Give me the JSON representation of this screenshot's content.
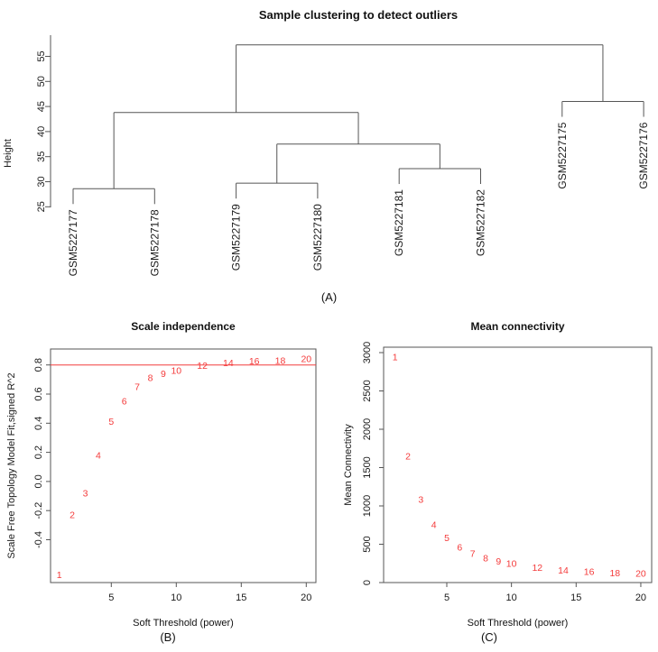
{
  "figure": {
    "background": "#ffffff",
    "accent_red": "#f43b3b",
    "line_color": "#555555",
    "text_color": "#1a1a1a"
  },
  "panelA": {
    "title": "Sample clustering to detect outliers",
    "caption": "(A)",
    "ylabel": "Height"
  },
  "panelB": {
    "title": "Scale independence",
    "caption": "(B)",
    "xlabel": "Soft Threshold (power)",
    "ylabel": "Scale Free Topology Model Fit,signed R^2"
  },
  "panelC": {
    "title": "Mean connectivity",
    "caption": "(C)",
    "xlabel": "Soft Threshold (power)",
    "ylabel": "Mean Connectivity"
  },
  "chart_data": [
    {
      "type": "dendrogram",
      "title": "Sample clustering to detect outliers",
      "ylabel": "Height",
      "ytick_values": [
        25,
        30,
        35,
        40,
        45,
        50,
        55
      ],
      "ytick_labels": [
        "25",
        "30",
        "35",
        "40",
        "45",
        "50",
        "55"
      ],
      "leaves": [
        "GSM5227177",
        "GSM5227178",
        "GSM5227179",
        "GSM5227180",
        "GSM5227181",
        "GSM5227182",
        "GSM5227175",
        "GSM5227176"
      ],
      "merges": [
        {
          "id": "M1",
          "a": "L0",
          "b": "L1",
          "height": 28.6
        },
        {
          "id": "M2",
          "a": "L2",
          "b": "L3",
          "height": 29.7
        },
        {
          "id": "M3",
          "a": "L4",
          "b": "L5",
          "height": 32.6
        },
        {
          "id": "M4",
          "a": "M2",
          "b": "M3",
          "height": 37.5
        },
        {
          "id": "M5",
          "a": "M1",
          "b": "M4",
          "height": 43.8
        },
        {
          "id": "M6",
          "a": "L6",
          "b": "L7",
          "height": 46.0
        },
        {
          "id": "M7",
          "a": "M5",
          "b": "M6",
          "height": 57.3
        }
      ],
      "ylim": [
        25,
        59
      ]
    },
    {
      "type": "scatter",
      "title": "Scale independence",
      "xlabel": "Soft Threshold (power)",
      "ylabel": "Scale Free Topology Model Fit,signed R^2",
      "xtick_values": [
        5,
        10,
        15,
        20
      ],
      "xtick_labels": [
        "5",
        "10",
        "15",
        "20"
      ],
      "ytick_values": [
        -0.4,
        -0.2,
        0.0,
        0.2,
        0.4,
        0.6,
        0.8
      ],
      "ytick_labels": [
        "-0.4",
        "-0.2",
        "0.0",
        "0.2",
        "0.4",
        "0.6",
        "0.8"
      ],
      "x": [
        1,
        2,
        3,
        4,
        5,
        6,
        7,
        8,
        9,
        10,
        12,
        14,
        16,
        18,
        20
      ],
      "y": [
        -0.64,
        -0.23,
        -0.08,
        0.18,
        0.41,
        0.55,
        0.65,
        0.71,
        0.74,
        0.76,
        0.795,
        0.815,
        0.825,
        0.83,
        0.84
      ],
      "point_labels": [
        "1",
        "2",
        "3",
        "4",
        "5",
        "6",
        "7",
        "8",
        "9",
        "10",
        "12",
        "14",
        "16",
        "18",
        "20"
      ],
      "hline": 0.8,
      "marker": "text-label",
      "point_color": "#f43b3b",
      "xlim": [
        0.2,
        20.8
      ],
      "ylim": [
        -0.72,
        0.91
      ],
      "grid": false,
      "legend": "none"
    },
    {
      "type": "scatter",
      "title": "Mean connectivity",
      "xlabel": "Soft Threshold (power)",
      "ylabel": "Mean Connectivity",
      "xtick_values": [
        5,
        10,
        15,
        20
      ],
      "xtick_labels": [
        "5",
        "10",
        "15",
        "20"
      ],
      "ytick_values": [
        0,
        500,
        1000,
        1500,
        2000,
        2500,
        3000
      ],
      "ytick_labels": [
        "0",
        "500",
        "1000",
        "1500",
        "2000",
        "2500",
        "3000"
      ],
      "x": [
        1,
        2,
        3,
        4,
        5,
        6,
        7,
        8,
        9,
        10,
        12,
        14,
        16,
        18,
        20
      ],
      "y": [
        2940,
        1650,
        1080,
        755,
        580,
        460,
        375,
        315,
        275,
        245,
        195,
        160,
        140,
        125,
        115
      ],
      "point_labels": [
        "1",
        "2",
        "3",
        "4",
        "5",
        "6",
        "7",
        "8",
        "9",
        "10",
        "12",
        "14",
        "16",
        "18",
        "20"
      ],
      "marker": "text-label",
      "point_color": "#f43b3b",
      "xlim": [
        0.2,
        20.8
      ],
      "ylim": [
        -60,
        3090
      ],
      "grid": false,
      "legend": "none"
    }
  ]
}
